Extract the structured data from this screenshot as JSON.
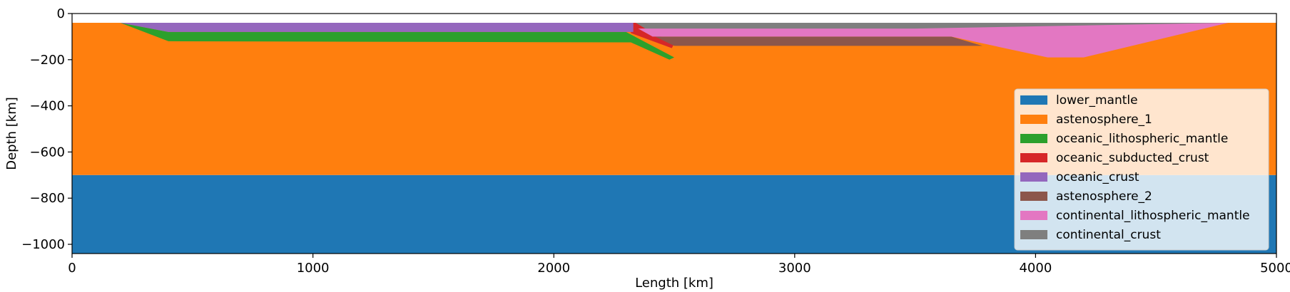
{
  "chart_data": {
    "type": "area",
    "title": "",
    "xlabel": "Length [km]",
    "ylabel": "Depth [km]",
    "xlim": [
      0,
      5000
    ],
    "ylim": [
      -1040,
      0
    ],
    "x_ticks": [
      0,
      1000,
      2000,
      3000,
      4000,
      5000
    ],
    "y_ticks": [
      0,
      -200,
      -400,
      -600,
      -800,
      -1000
    ],
    "x_tick_labels": [
      "0",
      "1000",
      "2000",
      "3000",
      "4000",
      "5000"
    ],
    "y_tick_labels": [
      "0",
      "−200",
      "−400",
      "−600",
      "−800",
      "−1000"
    ],
    "grid": false,
    "legend_position": "right",
    "series": [
      {
        "name": "lower_mantle",
        "color": "#1f77b4",
        "polygon": [
          [
            0,
            -700
          ],
          [
            5000,
            -700
          ],
          [
            5000,
            -1040
          ],
          [
            0,
            -1040
          ]
        ]
      },
      {
        "name": "astenosphere_1",
        "color": "#ff7f0e",
        "polygon": [
          [
            0,
            -40
          ],
          [
            5000,
            -40
          ],
          [
            5000,
            -700
          ],
          [
            0,
            -700
          ]
        ]
      },
      {
        "name": "oceanic_lithospheric_mantle",
        "color": "#2ca02c",
        "polygon": [
          [
            200,
            -40
          ],
          [
            400,
            -80
          ],
          [
            2300,
            -80
          ],
          [
            2500,
            -190
          ],
          [
            2480,
            -200
          ],
          [
            2320,
            -125
          ],
          [
            400,
            -120
          ]
        ]
      },
      {
        "name": "oceanic_subducted_crust",
        "color": "#d62728",
        "polygon": [
          [
            2320,
            -40
          ],
          [
            2340,
            -40
          ],
          [
            2500,
            -130
          ],
          [
            2490,
            -150
          ],
          [
            2320,
            -85
          ]
        ]
      },
      {
        "name": "oceanic_crust",
        "color": "#9467bd",
        "polygon": [
          [
            200,
            -40
          ],
          [
            2330,
            -40
          ],
          [
            2330,
            -80
          ],
          [
            400,
            -80
          ]
        ]
      },
      {
        "name": "astenosphere_2",
        "color": "#8c564b",
        "polygon": [
          [
            2420,
            -100
          ],
          [
            3650,
            -100
          ],
          [
            3780,
            -140
          ],
          [
            2500,
            -140
          ]
        ]
      },
      {
        "name": "continental_lithospheric_mantle",
        "color": "#e377c2",
        "polygon": [
          [
            2350,
            -65
          ],
          [
            4800,
            -40
          ],
          [
            4200,
            -190
          ],
          [
            4050,
            -190
          ],
          [
            3650,
            -100
          ],
          [
            2410,
            -100
          ]
        ]
      },
      {
        "name": "continental_crust",
        "color": "#7f7f7f",
        "polygon": [
          [
            2340,
            -40
          ],
          [
            4800,
            -40
          ],
          [
            3500,
            -65
          ],
          [
            2380,
            -65
          ]
        ]
      }
    ]
  }
}
